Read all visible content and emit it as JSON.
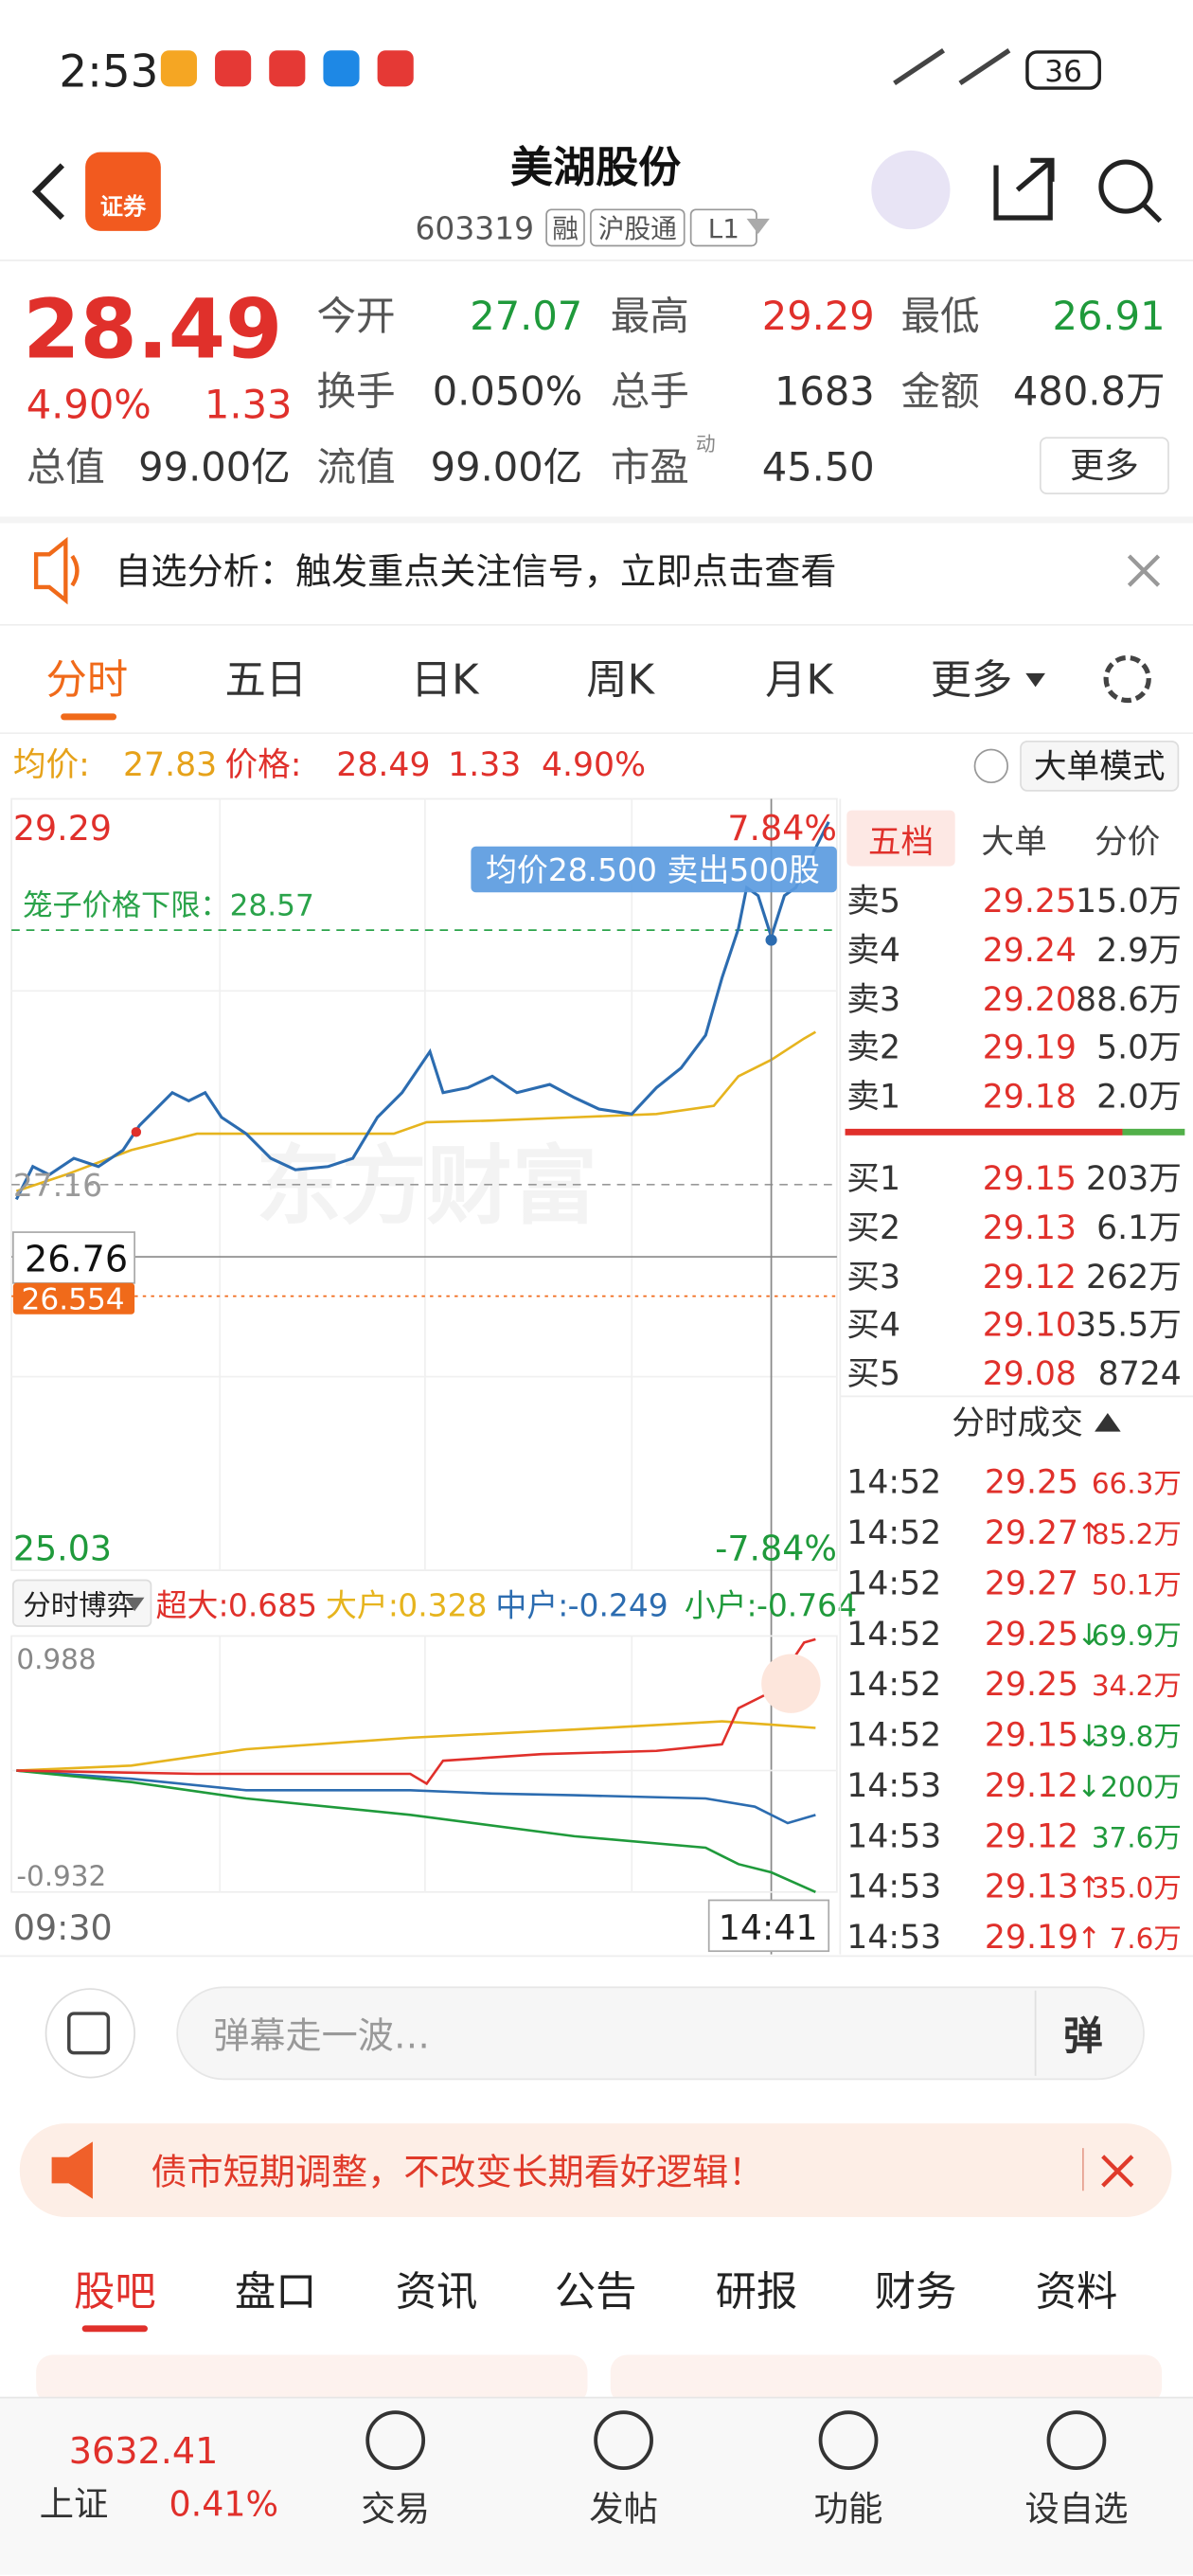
{
  "status_bar": {
    "time": "2:53",
    "battery": "36"
  },
  "header": {
    "title": "美湖股份",
    "code": "603319",
    "tags": [
      "融",
      "沪股通",
      "L1"
    ],
    "badge": "证券"
  },
  "quote": {
    "price": "28.49",
    "change_pct": "4.90%",
    "change": "1.33",
    "fields": [
      {
        "label": "今开",
        "value": "27.07"
      },
      {
        "label": "最高",
        "value": "29.29"
      },
      {
        "label": "最低",
        "value": "26.91"
      },
      {
        "label": "换手",
        "value": "0.050%"
      },
      {
        "label": "总手",
        "value": "1683"
      },
      {
        "label": "金额",
        "value": "480.8万"
      },
      {
        "label": "总值",
        "value": "99.00亿"
      },
      {
        "label": "流值",
        "value": "99.00亿"
      },
      {
        "label": "市盈",
        "value": "45.50",
        "sup": "动"
      }
    ],
    "more": "更多"
  },
  "notice": {
    "text": "自选分析：触发重点关注信号，立即点击查看"
  },
  "tabs": [
    "分时",
    "五日",
    "日K",
    "周K",
    "月K",
    "更多"
  ],
  "chart_info": {
    "avg_label": "均价:",
    "avg": "27.83",
    "price_label": "价格:",
    "price": "28.49",
    "change": "1.33",
    "pct": "4.90%",
    "mode": "大单模式"
  },
  "intraday": {
    "y_top": "29.29",
    "y_bottom": "25.03",
    "pct_top": "7.84%",
    "pct_bottom": "-7.84%",
    "tooltip": "均价28.500  卖出500股",
    "cage": "笼子价格下限：28.57",
    "prev_close": "27.16",
    "cursor_price": "26.76",
    "line_price": "26.554",
    "watermark": "东方财富",
    "flow_selector": "分时博弈",
    "flow": [
      {
        "name": "超大:",
        "value": "0.685",
        "color": "#e0302b"
      },
      {
        "name": "大户:",
        "value": "0.328",
        "color": "#e6b41e"
      },
      {
        "name": "中户:",
        "value": "-0.249",
        "color": "#2c6cb0"
      },
      {
        "name": "小户:",
        "value": "-0.764",
        "color": "#1f9a3b"
      }
    ],
    "flow_top": "0.988",
    "flow_bottom": "-0.932",
    "time_start": "09:30",
    "time_cursor": "14:41"
  },
  "order_book": {
    "tabs": [
      "五档",
      "大单",
      "分价"
    ],
    "asks": [
      {
        "label": "卖5",
        "price": "29.25",
        "vol": "15.0万"
      },
      {
        "label": "卖4",
        "price": "29.24",
        "vol": "2.9万"
      },
      {
        "label": "卖3",
        "price": "29.20",
        "vol": "88.6万"
      },
      {
        "label": "卖2",
        "price": "29.19",
        "vol": "5.0万"
      },
      {
        "label": "卖1",
        "price": "29.18",
        "vol": "2.0万"
      }
    ],
    "bids": [
      {
        "label": "买1",
        "price": "29.15",
        "vol": "203万"
      },
      {
        "label": "买2",
        "price": "29.13",
        "vol": "6.1万"
      },
      {
        "label": "买3",
        "price": "29.12",
        "vol": "262万"
      },
      {
        "label": "买4",
        "price": "29.10",
        "vol": "35.5万"
      },
      {
        "label": "买5",
        "price": "29.08",
        "vol": "8724"
      }
    ]
  },
  "trades": {
    "title": "分时成交",
    "rows": [
      {
        "time": "14:52",
        "price": "29.25",
        "dir": "",
        "vol": "66.3万",
        "color": "#e0302b"
      },
      {
        "time": "14:52",
        "price": "29.27",
        "dir": "↑",
        "vol": "85.2万",
        "color": "#e0302b"
      },
      {
        "time": "14:52",
        "price": "29.27",
        "dir": "",
        "vol": "50.1万",
        "color": "#e0302b"
      },
      {
        "time": "14:52",
        "price": "29.25",
        "dir": "↓",
        "vol": "69.9万",
        "color": "#1f9a3b"
      },
      {
        "time": "14:52",
        "price": "29.25",
        "dir": "",
        "vol": "34.2万",
        "color": "#e0302b"
      },
      {
        "time": "14:52",
        "price": "29.15",
        "dir": "↓",
        "vol": "39.8万",
        "color": "#1f9a3b"
      },
      {
        "time": "14:53",
        "price": "29.12",
        "dir": "↓",
        "vol": "200万",
        "color": "#1f9a3b"
      },
      {
        "time": "14:53",
        "price": "29.12",
        "dir": "",
        "vol": "37.6万",
        "color": "#1f9a3b"
      },
      {
        "time": "14:53",
        "price": "29.13",
        "dir": "↑",
        "vol": "35.0万",
        "color": "#e0302b"
      },
      {
        "time": "14:53",
        "price": "29.19",
        "dir": "↑",
        "vol": "7.6万",
        "color": "#e0302b"
      }
    ]
  },
  "comment_bar": {
    "placeholder": "弹幕走一波…",
    "button": "弹"
  },
  "banner": {
    "text": "债市短期调整，不改变长期看好逻辑！"
  },
  "bottom_tabs": [
    "股吧",
    "盘口",
    "资讯",
    "公告",
    "研报",
    "财务",
    "资料"
  ],
  "nav": {
    "index_value": "3632.41",
    "index_name": "上证",
    "index_pct": "0.41%",
    "items": [
      "交易",
      "发帖",
      "功能",
      "设自选"
    ]
  }
}
